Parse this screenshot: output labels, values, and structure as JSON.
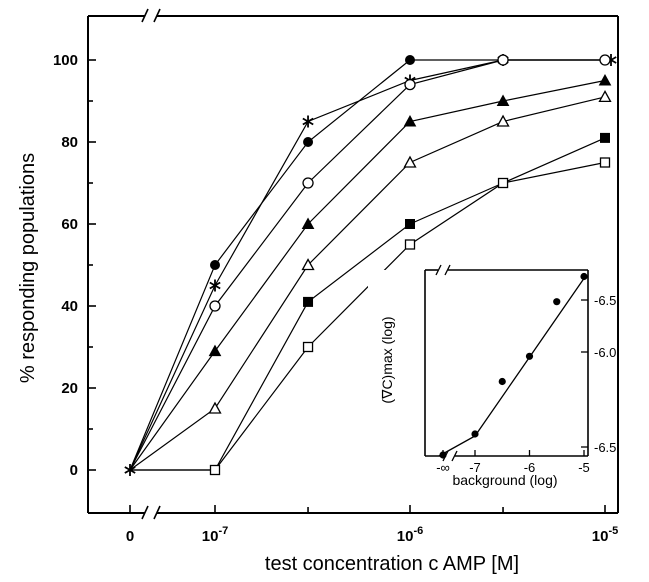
{
  "chart_data": [
    {
      "type": "line",
      "xlabel": "test concentration c AMP [M]",
      "ylabel": "% responding populations",
      "x_tick_labels": [
        "0",
        "10-7",
        "10-6",
        "10-5"
      ],
      "y_tick_labels": [
        "0",
        "20",
        "40",
        "60",
        "80",
        "100"
      ],
      "ylim": [
        -8,
        108
      ],
      "x_scale": "log10 concentration (M), with axis break between 0 and 10^-7",
      "x": [
        "0",
        "1e-7",
        "3e-7",
        "1e-6",
        "3e-6",
        "1e-5"
      ],
      "series": [
        {
          "marker": "star",
          "values": [
            0,
            45,
            85,
            95,
            100,
            100
          ]
        },
        {
          "marker": "filled-circle",
          "values": [
            0,
            50,
            80,
            100,
            100,
            100
          ]
        },
        {
          "marker": "open-circle",
          "values": [
            0,
            40,
            70,
            94,
            100,
            100
          ]
        },
        {
          "marker": "filled-triangle",
          "values": [
            0,
            29,
            60,
            85,
            90,
            95
          ]
        },
        {
          "marker": "open-triangle",
          "values": [
            0,
            15,
            50,
            75,
            85,
            91
          ]
        },
        {
          "marker": "filled-square",
          "values": [
            0,
            0,
            41,
            60,
            70,
            81
          ]
        },
        {
          "marker": "open-square",
          "values": [
            0,
            0,
            30,
            55,
            70,
            75
          ]
        }
      ],
      "grid": false
    },
    {
      "type": "scatter",
      "title": "",
      "xlabel": "background (log)",
      "ylabel": "(∇C)max (log)",
      "x_tick_labels": [
        "-∞",
        "-7",
        "-6",
        "-5"
      ],
      "y_tick_labels": [
        "-6.5",
        "-6.0",
        "-6.5"
      ],
      "x": [
        "-inf",
        -7,
        -6.5,
        -6,
        -5.5,
        -5
      ],
      "y": [
        -6.95,
        -6.85,
        -6.6,
        -6.48,
        -6.22,
        -6.1
      ],
      "fit_line": true
    }
  ]
}
